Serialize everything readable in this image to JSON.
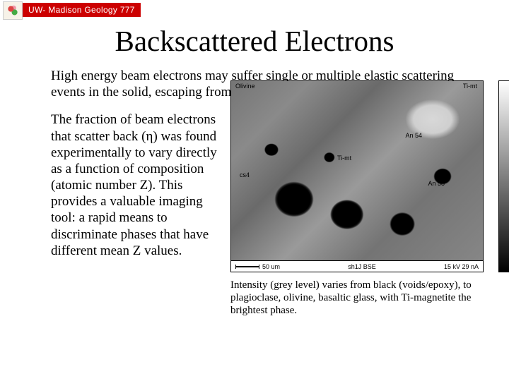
{
  "header": {
    "course_label": "UW- Madison Geology 777"
  },
  "title": "Backscattered Electrons",
  "paragraphs": {
    "p1": "High energy beam electrons may suffer single or multiple elastic scattering events in the solid, escaping from the material.",
    "p2": "The fraction of beam electrons that scatter back (η) was found experimentally to vary directly as a function of composition (atomic number Z). This provides a valuable imaging tool: a rapid means to discriminate phases that have different mean Z values."
  },
  "figure": {
    "labels": {
      "olivine": "Olivine",
      "timt": "Ti-mt",
      "an54": "An 54",
      "timt2": "Ti-mt",
      "an58": "An 58",
      "cs4": "cs4"
    },
    "footer": {
      "scale": "50 um",
      "sample": "sh1J BSE",
      "conditions": "15 kV   29 nA"
    },
    "caption": "Intensity (grey level) varies from black (voids/epoxy), to plagioclase, olivine, basaltic glass, with Ti-magnetite the brightest phase.",
    "palette": {
      "background": "#4a4a4a",
      "voids": "#000000",
      "bright_phase": "#d8d8d8",
      "gradient_top": "#ffffff",
      "gradient_bottom": "#000000"
    }
  },
  "colors": {
    "banner_bg": "#cc0000",
    "banner_text": "#ffffff",
    "page_bg": "#ffffff",
    "text": "#000000"
  }
}
